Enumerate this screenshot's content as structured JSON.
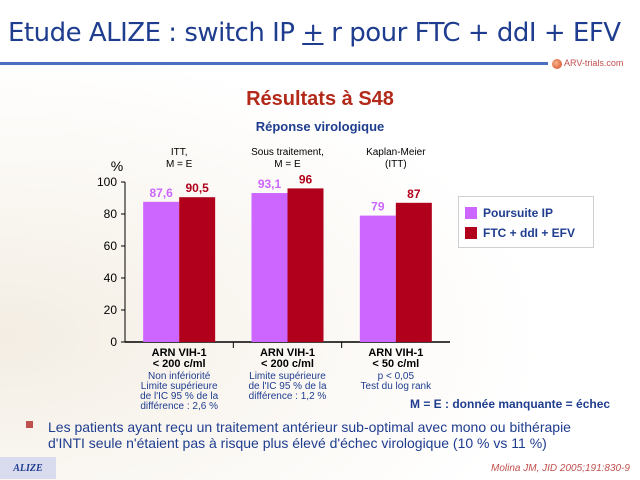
{
  "title": {
    "part1": "Etude ALIZE : switch IP ",
    "plus_minus": "+",
    "part2": " r pour FTC + ddI + EFV"
  },
  "logo_text": "ARV-trials.com",
  "section_title": "Résultats à S48",
  "subtitle": "Réponse virologique",
  "chart_data": {
    "type": "bar",
    "ylabel": "%",
    "ylim": [
      0,
      100
    ],
    "yticks": [
      "0",
      "20",
      "40",
      "60",
      "80",
      "100"
    ],
    "categories": [
      {
        "header": [
          "ITT,",
          "M = E"
        ],
        "label": [
          "ARN VIH-1",
          "< 200 c/ml"
        ],
        "notes": [
          "Non infériorité",
          "Limite supérieure",
          "de l'IC 95 % de la",
          "différence : 2,6 %"
        ]
      },
      {
        "header": [
          "Sous traitement,",
          "M = E"
        ],
        "label": [
          "ARN VIH-1",
          "< 200 c/ml"
        ],
        "notes": [
          "Limite supérieure",
          "de l'IC 95 % de la",
          "différence : 1,2 %"
        ]
      },
      {
        "header": [
          "Kaplan-Meier",
          "(ITT)"
        ],
        "label": [
          "ARN VIH-1",
          "< 50 c/ml"
        ],
        "notes": [
          "p < 0,05",
          "Test du log rank"
        ]
      }
    ],
    "series": [
      {
        "name": "Poursuite IP",
        "color": "#cc66ff",
        "values": [
          87.6,
          93.1,
          79
        ],
        "labels": [
          "87,6",
          "93,1",
          "79"
        ]
      },
      {
        "name": "FTC + ddI + EFV",
        "color": "#b0001c",
        "values": [
          90.5,
          96,
          87
        ],
        "labels": [
          "90,5",
          "96",
          "87"
        ]
      }
    ],
    "legend_position": "right"
  },
  "note_me": "M = E : donnée manquante = échec",
  "bullet": "Les patients ayant reçu un traitement antérieur sub-optimal avec mono ou bithérapie d'INTI seule n'étaient pas à risque plus élevé d'échec virologique (10 % vs 11 %)",
  "tag": "ALIZE",
  "reference": "Molina JM, JID 2005;191:830-9"
}
